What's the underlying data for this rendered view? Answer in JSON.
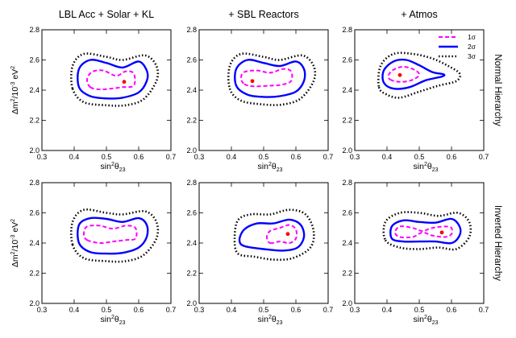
{
  "column_titles": [
    "LBL Acc + Solar + KL",
    "+ SBL Reactors",
    "+ Atmos"
  ],
  "row_labels": [
    "Normal Hierarchy",
    "Inverted Hierarchy"
  ],
  "y_axis_label": "Δm²/10⁻³ eV²",
  "x_axis_label": "sin²θ₂₃",
  "legend": [
    {
      "label": "1σ",
      "color": "#ff00ff",
      "style": "dashed"
    },
    {
      "label": "2σ",
      "color": "#0000ff",
      "style": "solid"
    },
    {
      "label": "3σ",
      "color": "#000000",
      "style": "dotted"
    }
  ],
  "chart_data": [
    {
      "type": "scatter",
      "title": "LBL Acc + Solar + KL",
      "row": "Normal Hierarchy",
      "xlim": [
        0.3,
        0.7
      ],
      "ylim": [
        2.0,
        2.8
      ],
      "xticks": [
        0.3,
        0.4,
        0.5,
        0.6,
        0.7
      ],
      "yticks": [
        2.0,
        2.2,
        2.4,
        2.6,
        2.8
      ],
      "best_fit": [
        0.555,
        2.455
      ],
      "series": [
        {
          "name": "1σ",
          "x": [
            0.45,
            0.48,
            0.515,
            0.55,
            0.585,
            0.585,
            0.56,
            0.53,
            0.49,
            0.455,
            0.44
          ],
          "y": [
            2.42,
            2.405,
            2.41,
            2.42,
            2.43,
            2.51,
            2.525,
            2.495,
            2.53,
            2.52,
            2.47
          ]
        },
        {
          "name": "2σ",
          "x": [
            0.415,
            0.45,
            0.5,
            0.55,
            0.6,
            0.625,
            0.625,
            0.6,
            0.55,
            0.5,
            0.45,
            0.415
          ],
          "y": [
            2.42,
            2.36,
            2.345,
            2.35,
            2.385,
            2.46,
            2.53,
            2.59,
            2.55,
            2.58,
            2.6,
            2.54
          ]
        },
        {
          "name": "3σ",
          "x": [
            0.395,
            0.43,
            0.5,
            0.56,
            0.615,
            0.655,
            0.655,
            0.62,
            0.55,
            0.5,
            0.43,
            0.395
          ],
          "y": [
            2.41,
            2.32,
            2.3,
            2.3,
            2.34,
            2.46,
            2.56,
            2.63,
            2.6,
            2.62,
            2.64,
            2.56
          ]
        }
      ]
    },
    {
      "type": "scatter",
      "title": "+ SBL Reactors",
      "row": "Normal Hierarchy",
      "xlim": [
        0.3,
        0.7
      ],
      "ylim": [
        2.0,
        2.8
      ],
      "xticks": [
        0.3,
        0.4,
        0.5,
        0.6,
        0.7
      ],
      "yticks": [
        2.0,
        2.2,
        2.4,
        2.6,
        2.8
      ],
      "best_fit": [
        0.465,
        2.46
      ],
      "series": [
        {
          "name": "1σ",
          "x": [
            0.44,
            0.47,
            0.52,
            0.555,
            0.585,
            0.585,
            0.56,
            0.52,
            0.48,
            0.44,
            0.43
          ],
          "y": [
            2.44,
            2.425,
            2.43,
            2.435,
            2.46,
            2.525,
            2.54,
            2.515,
            2.53,
            2.52,
            2.48
          ]
        },
        {
          "name": "2σ",
          "x": [
            0.415,
            0.45,
            0.5,
            0.55,
            0.6,
            0.625,
            0.625,
            0.6,
            0.55,
            0.5,
            0.45,
            0.415
          ],
          "y": [
            2.43,
            2.37,
            2.355,
            2.36,
            2.39,
            2.46,
            2.54,
            2.59,
            2.56,
            2.58,
            2.6,
            2.54
          ]
        },
        {
          "name": "3σ",
          "x": [
            0.395,
            0.43,
            0.5,
            0.56,
            0.615,
            0.655,
            0.655,
            0.62,
            0.55,
            0.5,
            0.43,
            0.395
          ],
          "y": [
            2.41,
            2.33,
            2.305,
            2.305,
            2.345,
            2.46,
            2.56,
            2.63,
            2.6,
            2.62,
            2.64,
            2.56
          ]
        }
      ]
    },
    {
      "type": "scatter",
      "title": "+ Atmos",
      "row": "Normal Hierarchy",
      "xlim": [
        0.3,
        0.7
      ],
      "ylim": [
        2.0,
        2.8
      ],
      "xticks": [
        0.3,
        0.4,
        0.5,
        0.6,
        0.7
      ],
      "yticks": [
        2.0,
        2.2,
        2.4,
        2.6,
        2.8
      ],
      "best_fit": [
        0.44,
        2.5
      ],
      "series": [
        {
          "name": "1σ",
          "x": [
            0.41,
            0.44,
            0.475,
            0.5,
            0.485,
            0.45,
            0.42,
            0.405
          ],
          "y": [
            2.47,
            2.455,
            2.465,
            2.5,
            2.535,
            2.555,
            2.535,
            2.5
          ]
        },
        {
          "name": "2σ",
          "x": [
            0.39,
            0.42,
            0.47,
            0.52,
            0.57,
            0.575,
            0.54,
            0.5,
            0.46,
            0.42,
            0.39
          ],
          "y": [
            2.45,
            2.41,
            2.42,
            2.465,
            2.49,
            2.505,
            2.52,
            2.565,
            2.6,
            2.59,
            2.53
          ]
        },
        {
          "name": "3σ",
          "x": [
            0.375,
            0.4,
            0.44,
            0.5,
            0.56,
            0.615,
            0.625,
            0.59,
            0.54,
            0.48,
            0.42,
            0.38
          ],
          "y": [
            2.42,
            2.37,
            2.35,
            2.39,
            2.43,
            2.46,
            2.51,
            2.56,
            2.61,
            2.64,
            2.64,
            2.56
          ]
        }
      ]
    },
    {
      "type": "scatter",
      "title": "LBL Acc + Solar + KL",
      "row": "Inverted Hierarchy",
      "xlim": [
        0.3,
        0.7
      ],
      "ylim": [
        2.0,
        2.8
      ],
      "xticks": [
        0.3,
        0.4,
        0.5,
        0.6,
        0.7
      ],
      "yticks": [
        2.0,
        2.2,
        2.4,
        2.6,
        2.8
      ],
      "best_fit": null,
      "series": [
        {
          "name": "1σ",
          "x": [
            0.44,
            0.48,
            0.52,
            0.56,
            0.59,
            0.59,
            0.56,
            0.52,
            0.48,
            0.44,
            0.43
          ],
          "y": [
            2.42,
            2.4,
            2.41,
            2.42,
            2.43,
            2.5,
            2.515,
            2.495,
            2.515,
            2.51,
            2.46
          ]
        },
        {
          "name": "2σ",
          "x": [
            0.415,
            0.45,
            0.5,
            0.55,
            0.6,
            0.625,
            0.625,
            0.6,
            0.55,
            0.5,
            0.45,
            0.415
          ],
          "y": [
            2.4,
            2.34,
            2.33,
            2.335,
            2.37,
            2.44,
            2.52,
            2.565,
            2.54,
            2.56,
            2.565,
            2.52
          ]
        },
        {
          "name": "3σ",
          "x": [
            0.395,
            0.43,
            0.5,
            0.56,
            0.615,
            0.655,
            0.655,
            0.62,
            0.55,
            0.5,
            0.43,
            0.395
          ],
          "y": [
            2.39,
            2.3,
            2.28,
            2.28,
            2.32,
            2.43,
            2.54,
            2.61,
            2.59,
            2.6,
            2.62,
            2.54
          ]
        }
      ]
    },
    {
      "type": "scatter",
      "title": "+ SBL Reactors",
      "row": "Inverted Hierarchy",
      "xlim": [
        0.3,
        0.7
      ],
      "ylim": [
        2.0,
        2.8
      ],
      "xticks": [
        0.3,
        0.4,
        0.5,
        0.6,
        0.7
      ],
      "yticks": [
        2.0,
        2.2,
        2.4,
        2.6,
        2.8
      ],
      "best_fit": [
        0.575,
        2.46
      ],
      "series": [
        {
          "name": "1σ",
          "x": [
            0.52,
            0.55,
            0.58,
            0.6,
            0.6,
            0.58,
            0.55,
            0.52,
            0.51
          ],
          "y": [
            2.4,
            2.41,
            2.4,
            2.43,
            2.49,
            2.52,
            2.5,
            2.48,
            2.44
          ]
        },
        {
          "name": "2σ",
          "x": [
            0.44,
            0.5,
            0.56,
            0.605,
            0.625,
            0.615,
            0.58,
            0.53,
            0.48,
            0.44,
            0.425
          ],
          "y": [
            2.38,
            2.36,
            2.35,
            2.37,
            2.44,
            2.52,
            2.555,
            2.53,
            2.53,
            2.49,
            2.42
          ]
        },
        {
          "name": "3σ",
          "x": [
            0.42,
            0.47,
            0.53,
            0.59,
            0.645,
            0.655,
            0.63,
            0.58,
            0.52,
            0.46,
            0.42,
            0.41
          ],
          "y": [
            2.33,
            2.31,
            2.29,
            2.3,
            2.37,
            2.48,
            2.59,
            2.62,
            2.59,
            2.59,
            2.55,
            2.43
          ]
        }
      ]
    },
    {
      "type": "scatter",
      "title": "+ Atmos",
      "row": "Inverted Hierarchy",
      "xlim": [
        0.3,
        0.7
      ],
      "ylim": [
        2.0,
        2.8
      ],
      "xticks": [
        0.3,
        0.4,
        0.5,
        0.6,
        0.7
      ],
      "yticks": [
        2.0,
        2.2,
        2.4,
        2.6,
        2.8
      ],
      "best_fit": [
        0.57,
        2.47
      ],
      "series": [
        {
          "name": "1σ",
          "x": [
            0.44,
            0.48,
            0.51,
            0.54,
            0.58,
            0.6,
            0.6,
            0.58,
            0.54,
            0.51,
            0.48,
            0.44,
            0.425
          ],
          "y": [
            2.44,
            2.44,
            2.47,
            2.45,
            2.44,
            2.46,
            2.5,
            2.51,
            2.5,
            2.48,
            2.5,
            2.51,
            2.47
          ]
        },
        {
          "name": "2σ",
          "x": [
            0.415,
            0.45,
            0.5,
            0.55,
            0.6,
            0.625,
            0.625,
            0.6,
            0.55,
            0.5,
            0.45,
            0.415
          ],
          "y": [
            2.43,
            2.41,
            2.41,
            2.41,
            2.4,
            2.45,
            2.51,
            2.56,
            2.535,
            2.54,
            2.55,
            2.51
          ]
        },
        {
          "name": "3σ",
          "x": [
            0.395,
            0.44,
            0.5,
            0.56,
            0.615,
            0.655,
            0.655,
            0.62,
            0.56,
            0.5,
            0.44,
            0.395
          ],
          "y": [
            2.42,
            2.37,
            2.36,
            2.37,
            2.36,
            2.44,
            2.54,
            2.6,
            2.58,
            2.6,
            2.6,
            2.54
          ]
        }
      ]
    }
  ]
}
